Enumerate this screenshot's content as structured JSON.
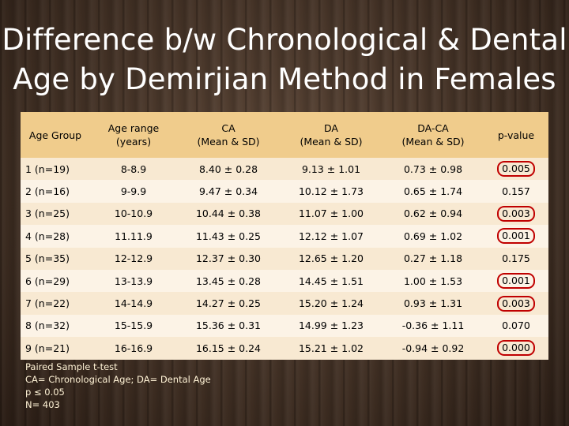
{
  "title": {
    "line1": "Difference b/w Chronological & Dental",
    "line2": "Age by Demirjian Method in Females"
  },
  "table": {
    "headers": [
      {
        "lines": [
          "Age Group"
        ]
      },
      {
        "lines": [
          "Age range",
          "(years)"
        ]
      },
      {
        "lines": [
          "CA",
          "(Mean & SD)"
        ]
      },
      {
        "lines": [
          "DA",
          "(Mean & SD)"
        ]
      },
      {
        "lines": [
          "DA-CA",
          "(Mean & SD)"
        ]
      },
      {
        "lines": [
          "p-value"
        ]
      }
    ],
    "rows": [
      {
        "group": "1 (n=19)",
        "range": "8-8.9",
        "ca": "8.40 ± 0.28",
        "da": "9.13 ± 1.01",
        "diff": "0.73 ± 0.98",
        "p": "0.005",
        "significant": true
      },
      {
        "group": "2 (n=16)",
        "range": "9-9.9",
        "ca": "9.47 ± 0.34",
        "da": "10.12 ± 1.73",
        "diff": "0.65 ± 1.74",
        "p": "0.157",
        "significant": false
      },
      {
        "group": "3 (n=25)",
        "range": "10-10.9",
        "ca": "10.44 ± 0.38",
        "da": "11.07 ± 1.00",
        "diff": "0.62 ± 0.94",
        "p": "0.003",
        "significant": true
      },
      {
        "group": "4 (n=28)",
        "range": "11.11.9",
        "ca": "11.43 ± 0.25",
        "da": "12.12 ± 1.07",
        "diff": "0.69 ± 1.02",
        "p": "0.001",
        "significant": true
      },
      {
        "group": "5 (n=35)",
        "range": "12-12.9",
        "ca": "12.37 ± 0.30",
        "da": "12.65 ± 1.20",
        "diff": "0.27 ± 1.18",
        "p": "0.175",
        "significant": false
      },
      {
        "group": "6 (n=29)",
        "range": "13-13.9",
        "ca": "13.45 ± 0.28",
        "da": "14.45 ± 1.51",
        "diff": "1.00 ± 1.53",
        "p": "0.001",
        "significant": true
      },
      {
        "group": "7 (n=22)",
        "range": "14-14.9",
        "ca": "14.27 ± 0.25",
        "da": "15.20 ± 1.24",
        "diff": "0.93 ± 1.31",
        "p": "0.003",
        "significant": true
      },
      {
        "group": "8 (n=32)",
        "range": "15-15.9",
        "ca": "15.36 ± 0.31",
        "da": "14.99 ± 1.23",
        "diff": "-0.36 ± 1.11",
        "p": "0.070",
        "significant": false
      },
      {
        "group": "9 (n=21)",
        "range": "16-16.9",
        "ca": "16.15 ± 0.24",
        "da": "15.21 ± 1.02",
        "diff": "-0.94 ± 0.92",
        "p": "0.000",
        "significant": true
      }
    ]
  },
  "footnotes": [
    "Paired Sample t-test",
    "CA= Chronological Age; DA= Dental Age",
    "p ≤ 0.05",
    "N= 403"
  ],
  "colors": {
    "header_bg": "#f0cc8c",
    "row_odd": "#f8e9d2",
    "row_even": "#fcf3e6",
    "highlight_circle": "#c00000",
    "title_text": "#ffffff"
  }
}
